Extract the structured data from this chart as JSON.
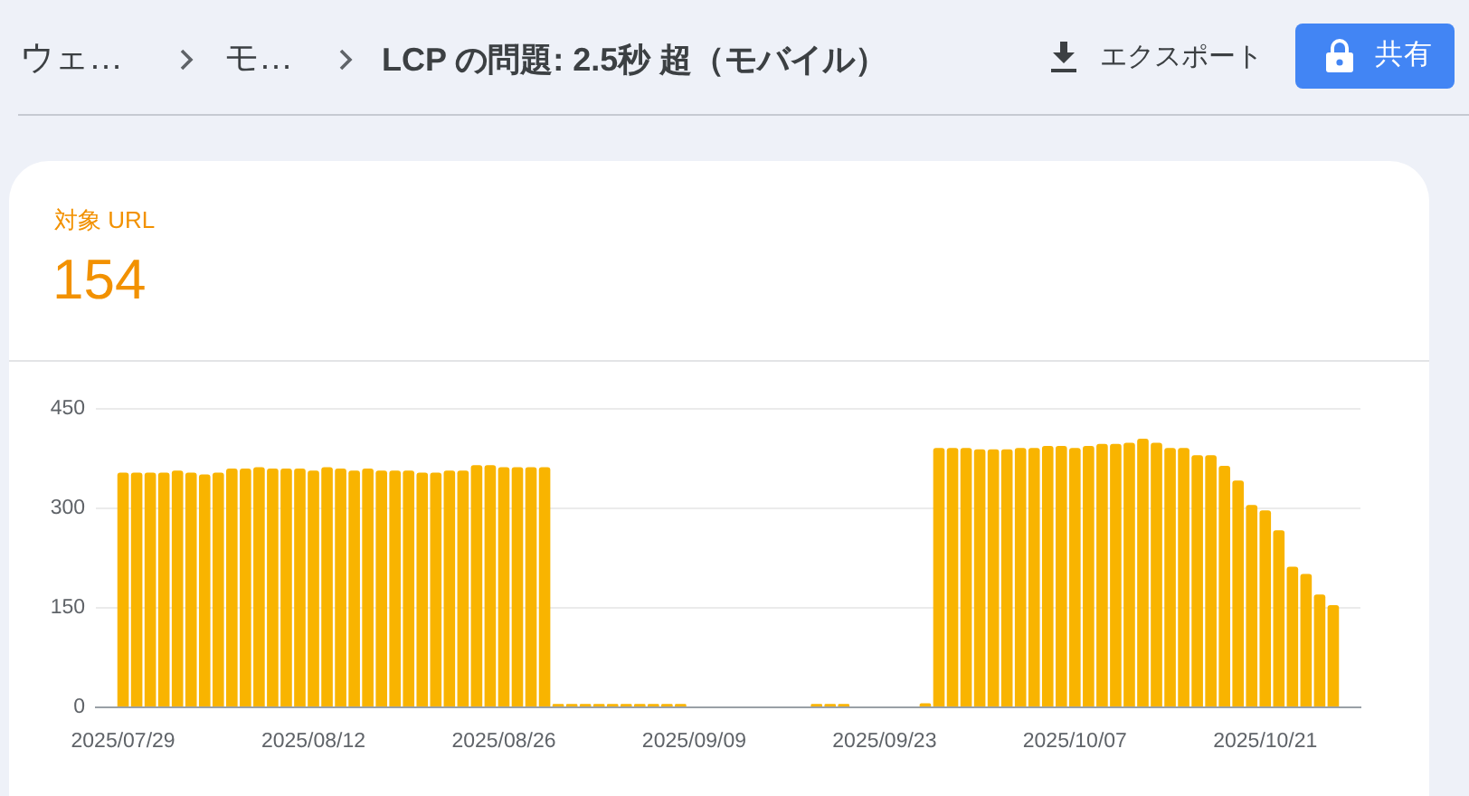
{
  "chart_data": {
    "type": "bar",
    "title": "LCP の問題: 2.5秒 超（モバイル）",
    "annotations": [
      "ウェ…",
      "モ…",
      "エクスポート",
      "共有",
      "対象 URL",
      "154"
    ],
    "x": [
      "2025-07-29",
      "2025-07-30",
      "2025-07-31",
      "2025-08-01",
      "2025-08-02",
      "2025-08-03",
      "2025-08-04",
      "2025-08-05",
      "2025-08-06",
      "2025-08-07",
      "2025-08-08",
      "2025-08-09",
      "2025-08-10",
      "2025-08-11",
      "2025-08-12",
      "2025-08-13",
      "2025-08-14",
      "2025-08-15",
      "2025-08-16",
      "2025-08-17",
      "2025-08-18",
      "2025-08-19",
      "2025-08-20",
      "2025-08-21",
      "2025-08-22",
      "2025-08-23",
      "2025-08-24",
      "2025-08-25",
      "2025-08-26",
      "2025-08-27",
      "2025-08-28",
      "2025-08-29",
      "2025-08-30",
      "2025-08-31",
      "2025-09-01",
      "2025-09-02",
      "2025-09-03",
      "2025-09-04",
      "2025-09-05",
      "2025-09-06",
      "2025-09-07",
      "2025-09-08",
      "2025-09-09",
      "2025-09-10",
      "2025-09-11",
      "2025-09-12",
      "2025-09-13",
      "2025-09-14",
      "2025-09-15",
      "2025-09-16",
      "2025-09-17",
      "2025-09-18",
      "2025-09-19",
      "2025-09-20",
      "2025-09-21",
      "2025-09-22",
      "2025-09-23",
      "2025-09-24",
      "2025-09-25",
      "2025-09-26",
      "2025-09-27",
      "2025-09-28",
      "2025-09-29",
      "2025-09-30",
      "2025-10-01",
      "2025-10-02",
      "2025-10-03",
      "2025-10-04",
      "2025-10-05",
      "2025-10-06",
      "2025-10-07",
      "2025-10-08",
      "2025-10-09",
      "2025-10-10",
      "2025-10-11",
      "2025-10-12",
      "2025-10-13",
      "2025-10-14",
      "2025-10-15",
      "2025-10-16",
      "2025-10-17",
      "2025-10-18",
      "2025-10-19",
      "2025-10-20",
      "2025-10-21",
      "2025-10-22",
      "2025-10-23",
      "2025-10-24",
      "2025-10-25",
      "2025-10-26"
    ],
    "values": [
      354,
      354,
      354,
      354,
      357,
      354,
      351,
      354,
      360,
      360,
      362,
      360,
      360,
      360,
      357,
      362,
      360,
      357,
      360,
      357,
      357,
      357,
      354,
      354,
      357,
      357,
      365,
      365,
      362,
      362,
      362,
      362,
      5,
      5,
      5,
      5,
      5,
      5,
      5,
      5,
      5,
      5,
      0,
      0,
      0,
      0,
      0,
      0,
      0,
      0,
      0,
      5,
      5,
      5,
      0,
      0,
      0,
      0,
      0,
      6,
      391,
      391,
      391,
      389,
      389,
      389,
      391,
      391,
      394,
      394,
      391,
      394,
      397,
      397,
      399,
      405,
      399,
      391,
      391,
      380,
      380,
      364,
      342,
      305,
      297,
      267,
      212,
      201,
      170,
      154
    ],
    "color": "#f9b400",
    "xlim": [
      "2025-07-27",
      "2025-10-28"
    ],
    "xticks": [
      {
        "value": "2025-07-29",
        "label": "2025/07/29"
      },
      {
        "value": "2025-08-12",
        "label": "2025/08/12"
      },
      {
        "value": "2025-08-26",
        "label": "2025/08/26"
      },
      {
        "value": "2025-09-09",
        "label": "2025/09/09"
      },
      {
        "value": "2025-09-23",
        "label": "2025/09/23"
      },
      {
        "value": "2025-10-07",
        "label": "2025/10/07"
      },
      {
        "value": "2025-10-21",
        "label": "2025/10/21"
      }
    ],
    "ylim": [
      0,
      450
    ],
    "yticks": [
      0,
      150,
      300,
      450
    ],
    "grid": "y"
  }
}
